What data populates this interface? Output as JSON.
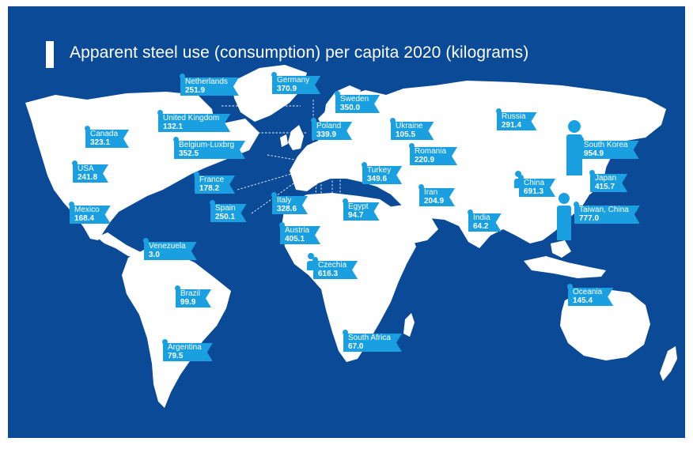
{
  "title": "Apparent steel use (consumption) per capita 2020 (kilograms)",
  "colors": {
    "ocean": "#0a4a97",
    "land": "#ffffff",
    "label": "#1aa0e1"
  },
  "countries": [
    {
      "id": "netherlands",
      "name": "Netherlands",
      "value": "251.9"
    },
    {
      "id": "germany",
      "name": "Germany",
      "value": "370.9"
    },
    {
      "id": "sweden",
      "name": "Sweden",
      "value": "350.0"
    },
    {
      "id": "united-kingdom",
      "name": "United Kingdom",
      "value": "132.1"
    },
    {
      "id": "poland",
      "name": "Poland",
      "value": "339.9"
    },
    {
      "id": "ukraine",
      "name": "Ukraine",
      "value": "105.5"
    },
    {
      "id": "russia",
      "name": "Russia",
      "value": "291.4"
    },
    {
      "id": "canada",
      "name": "Canada",
      "value": "323.1"
    },
    {
      "id": "belgium-luxbrg",
      "name": "Belgium-Luxbrg",
      "value": "352.5"
    },
    {
      "id": "romania",
      "name": "Romania",
      "value": "220.9"
    },
    {
      "id": "south-korea",
      "name": "South Korea",
      "value": "954.9"
    },
    {
      "id": "usa",
      "name": "USA",
      "value": "241.8"
    },
    {
      "id": "turkey",
      "name": "Turkey",
      "value": "349.6"
    },
    {
      "id": "france",
      "name": "France",
      "value": "178.2"
    },
    {
      "id": "china",
      "name": "China",
      "value": "691.3"
    },
    {
      "id": "japan",
      "name": "Japan",
      "value": "415.7"
    },
    {
      "id": "iran",
      "name": "Iran",
      "value": "204.9"
    },
    {
      "id": "italy",
      "name": "Italy",
      "value": "328.6"
    },
    {
      "id": "spain",
      "name": "Spain",
      "value": "250.1"
    },
    {
      "id": "egypt",
      "name": "Egypt",
      "value": "94.7"
    },
    {
      "id": "mexico",
      "name": "Mexico",
      "value": "168.4"
    },
    {
      "id": "india",
      "name": "India",
      "value": "64.2"
    },
    {
      "id": "taiwan-china",
      "name": "Taiwan, China",
      "value": "777.0"
    },
    {
      "id": "austria",
      "name": "Austria",
      "value": "405.1"
    },
    {
      "id": "venezuela",
      "name": "Venezuela",
      "value": "3.0"
    },
    {
      "id": "czechia",
      "name": "Czechia",
      "value": "616.3"
    },
    {
      "id": "brazil",
      "name": "Brazil",
      "value": "99.9"
    },
    {
      "id": "oceania",
      "name": "Oceania",
      "value": "145.4"
    },
    {
      "id": "argentina",
      "name": "Argentina",
      "value": "79.5"
    },
    {
      "id": "south-africa",
      "name": "South Africa",
      "value": "67.0"
    }
  ]
}
